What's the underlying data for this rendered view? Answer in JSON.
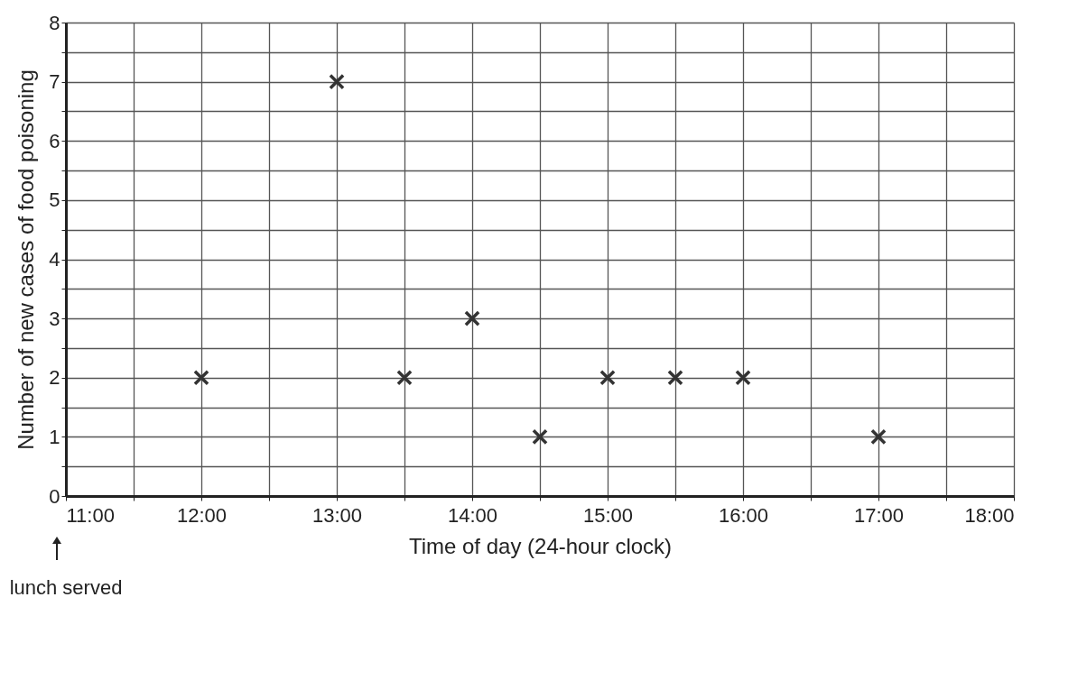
{
  "chart_data": {
    "type": "scatter",
    "xlabel": "Time of day (24-hour clock)",
    "ylabel": "Number  of new cases of food poisoning",
    "x": [
      12,
      13,
      13.5,
      14,
      14.5,
      15,
      15.5,
      16,
      17
    ],
    "series": [
      {
        "color": "#333333",
        "values": [
          2,
          7,
          2,
          3,
          1,
          2,
          2,
          2,
          1
        ]
      }
    ],
    "xlim": [
      11,
      18
    ],
    "xticks": [
      {
        "value": 11,
        "label": "11:00"
      },
      {
        "value": 11.5,
        "label": null
      },
      {
        "value": 12,
        "label": "12:00"
      },
      {
        "value": 12.5,
        "label": null
      },
      {
        "value": 13,
        "label": "13:00"
      },
      {
        "value": 13.5,
        "label": null
      },
      {
        "value": 14,
        "label": "14:00"
      },
      {
        "value": 14.5,
        "label": null
      },
      {
        "value": 15,
        "label": "15:00"
      },
      {
        "value": 15.5,
        "label": null
      },
      {
        "value": 16,
        "label": "16:00"
      },
      {
        "value": 16.5,
        "label": null
      },
      {
        "value": 17,
        "label": "17:00"
      },
      {
        "value": 17.5,
        "label": null
      },
      {
        "value": 18,
        "label": "18:00"
      }
    ],
    "ylim": [
      0,
      8
    ],
    "yticks": [
      0,
      {
        "value": 0.5,
        "label": null
      },
      1,
      {
        "value": 1.5,
        "label": null
      },
      2,
      {
        "value": 2.5,
        "label": null
      },
      3,
      {
        "value": 3.5,
        "label": null
      },
      4,
      {
        "value": 4.5,
        "label": null
      },
      5,
      {
        "value": 5.5,
        "label": null
      },
      6,
      {
        "value": 6.5,
        "label": null
      },
      7,
      {
        "value": 7.5,
        "label": null
      },
      8
    ],
    "grid": true,
    "marker": "cross",
    "annotations": [
      "lunch served"
    ]
  }
}
